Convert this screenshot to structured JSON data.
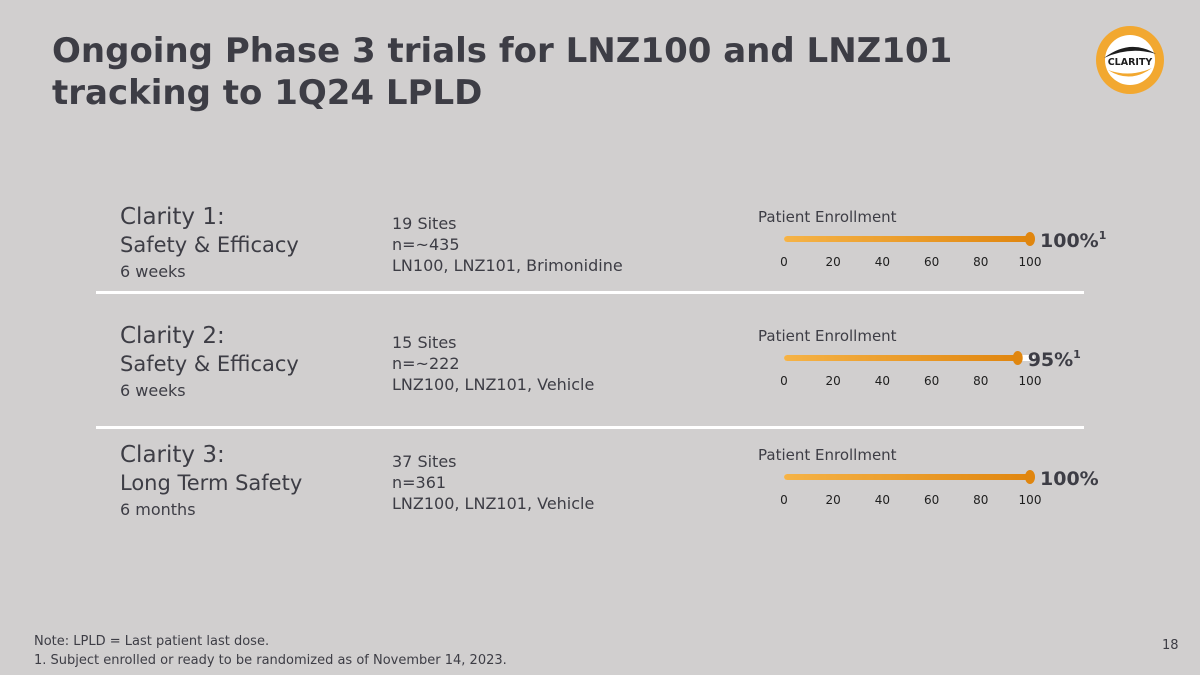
{
  "title": "Ongoing Phase 3 trials for LNZ100 and LNZ101 tracking to 1Q24 LPLD",
  "logo": {
    "text": "CLARITY",
    "accent": "#f2a830"
  },
  "trials": [
    {
      "name": "Clarity 1:",
      "subtitle": "Safety & Efficacy",
      "duration": "6 weeks",
      "sites": "19 Sites",
      "n": "n=~435",
      "arms": "LN100, LNZ101, Brimonidine"
    },
    {
      "name": "Clarity 2:",
      "subtitle": "Safety & Efficacy",
      "duration": "6 weeks",
      "sites": "15 Sites",
      "n": "n=~222",
      "arms": "LNZ100, LNZ101, Vehicle"
    },
    {
      "name": "Clarity 3:",
      "subtitle": "Long Term Safety",
      "duration": "6 months",
      "sites": "37 Sites",
      "n": "n=361",
      "arms": "LNZ100, LNZ101, Vehicle"
    }
  ],
  "chart_data": [
    {
      "type": "bar",
      "title": "Patient Enrollment",
      "categories": [
        "Clarity 1"
      ],
      "values": [
        100
      ],
      "value_label": "100%",
      "footnote_marker": "1",
      "xlim": [
        0,
        100
      ],
      "xticks": [
        "0",
        "20",
        "40",
        "60",
        "80",
        "100"
      ],
      "colors": {
        "start": "#f5b347",
        "end": "#e0860f",
        "track": "#ffffff"
      }
    },
    {
      "type": "bar",
      "title": "Patient Enrollment",
      "categories": [
        "Clarity 2"
      ],
      "values": [
        95
      ],
      "value_label": "95%",
      "footnote_marker": "1",
      "xlim": [
        0,
        100
      ],
      "xticks": [
        "0",
        "20",
        "40",
        "60",
        "80",
        "100"
      ],
      "colors": {
        "start": "#f5b347",
        "end": "#e0860f",
        "track": "#ffffff"
      }
    },
    {
      "type": "bar",
      "title": "Patient Enrollment",
      "categories": [
        "Clarity 3"
      ],
      "values": [
        100
      ],
      "value_label": "100%",
      "footnote_marker": "",
      "xlim": [
        0,
        100
      ],
      "xticks": [
        "0",
        "20",
        "40",
        "60",
        "80",
        "100"
      ],
      "colors": {
        "start": "#f5b347",
        "end": "#e0860f",
        "track": "#ffffff"
      }
    }
  ],
  "footnotes": {
    "note": "Note: LPLD = Last patient last dose.",
    "ref1": "1. Subject enrolled or ready to be randomized as of November 14, 2023."
  },
  "page_number": "18"
}
